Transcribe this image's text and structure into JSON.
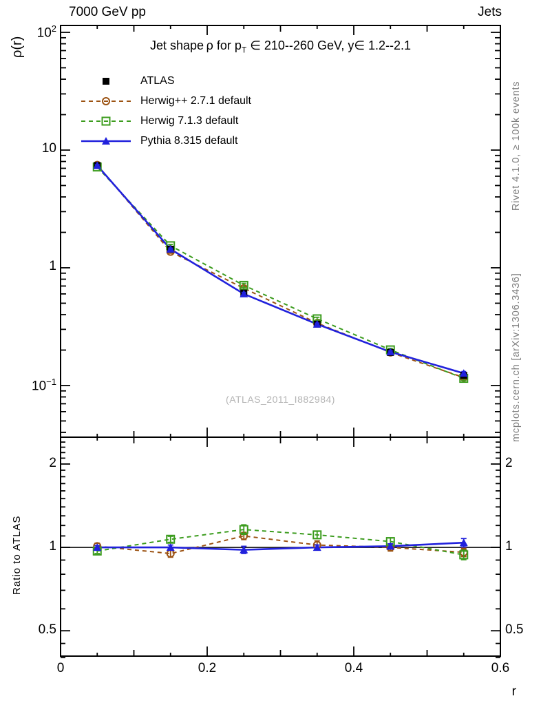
{
  "header": {
    "left": "7000 GeV pp",
    "right": "Jets"
  },
  "title": {
    "prefix": "Jet shape ρ for p",
    "sub": "T",
    "suffix": " ∈ 210--260 GeV, y∈ 1.2--2.1"
  },
  "watermark": "(ATLAS_2011_I882984)",
  "credits": {
    "top": "Rivet 4.1.0, ≥ 100k events",
    "bottom": "mcplots.cern.ch [arXiv:1306.3436]"
  },
  "axes": {
    "y_main_label": "ρ(r)",
    "y_ratio_label": "Ratio to ATLAS",
    "x_label": "r"
  },
  "chart_data": {
    "type": "line",
    "title": "Jet shape ρ for pT ∈ 210--260 GeV, y ∈ 1.2--2.1",
    "xlabel": "r",
    "ylabel": "ρ(r)",
    "ratio_ylabel": "Ratio to ATLAS",
    "x": [
      0.05,
      0.15,
      0.25,
      0.35,
      0.45,
      0.55
    ],
    "xlim": [
      0,
      0.6
    ],
    "ylim_main": [
      0.0364,
      114.4
    ],
    "ylim_ratio": [
      0.405,
      2.5
    ],
    "log_y_main": true,
    "log_y_ratio": true,
    "x_tick_labels": [
      {
        "text": "0",
        "value": 0
      },
      {
        "text": "0.2",
        "value": 0.2
      },
      {
        "text": "0.4",
        "value": 0.4
      },
      {
        "text": "0.6",
        "value": 0.6
      }
    ],
    "y_main_tick_labels": [
      {
        "base": "10",
        "sup": "2",
        "value": 100
      },
      {
        "base": "10",
        "sup": "",
        "value": 10
      },
      {
        "base": "1",
        "sup": "",
        "value": 1
      },
      {
        "base": "10",
        "sup": "−1",
        "value": 0.1
      }
    ],
    "ratio_tick_labels": [
      {
        "text": "2",
        "value": 2
      },
      {
        "text": "1",
        "value": 1
      },
      {
        "text": "0.5",
        "value": 0.5
      }
    ],
    "series": [
      {
        "name": "ATLAS",
        "slug": "atlas",
        "color": "#000000",
        "marker": "square-filled",
        "line": "none",
        "values": [
          7.4,
          1.44,
          0.61,
          0.332,
          0.191,
          0.122
        ],
        "ratio": [
          1,
          1,
          1,
          1,
          1,
          1
        ],
        "ratio_err": [
          0,
          0,
          0,
          0,
          0,
          0
        ]
      },
      {
        "name": "Herwig++ 2.7.1 default",
        "slug": "herwig-2-7-1",
        "color": "#9c5313",
        "marker": "circle-open",
        "line": "dashed",
        "values": [
          7.47,
          1.37,
          0.67,
          0.339,
          0.191,
          0.117
        ],
        "ratio": [
          1.01,
          0.95,
          1.1,
          1.02,
          1.0,
          0.96
        ],
        "ratio_err": [
          0.025,
          0.03,
          0.03,
          0.035,
          0.03,
          0.035
        ]
      },
      {
        "name": "Herwig 7.1.3 default",
        "slug": "herwig-7-1-3",
        "color": "#3c9c1e",
        "marker": "square-open",
        "line": "dashed",
        "values": [
          7.18,
          1.54,
          0.71,
          0.369,
          0.201,
          0.115
        ],
        "ratio": [
          0.97,
          1.07,
          1.16,
          1.11,
          1.05,
          0.94
        ],
        "ratio_err": [
          0.02,
          0.025,
          0.04,
          0.03,
          0.03,
          0.04
        ]
      },
      {
        "name": "Pythia 8.315 default",
        "slug": "pythia-8-315",
        "color": "#2121dc",
        "marker": "triangle-filled",
        "line": "solid",
        "values": [
          7.4,
          1.44,
          0.6,
          0.332,
          0.193,
          0.127
        ],
        "ratio": [
          1.0,
          1.0,
          0.98,
          1.0,
          1.01,
          1.04
        ],
        "ratio_err": [
          0.015,
          0.02,
          0.03,
          0.02,
          0.02,
          0.035
        ]
      }
    ],
    "legend_position": "top-left-inside",
    "grid": false
  }
}
